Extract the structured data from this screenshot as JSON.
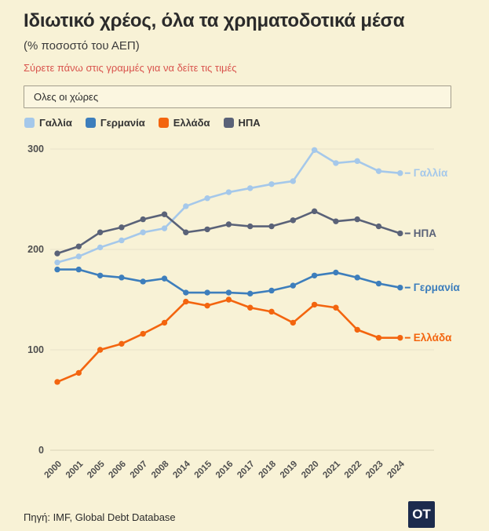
{
  "page": {
    "title": "Ιδιωτικό χρέος, όλα τα χρηματοδοτικά μέσα",
    "subtitle": "(% ποσοστό του ΑΕΠ)",
    "hint": "Σύρετε πάνω στις γραμμές για να δείτε τις τιμές",
    "background": "#f8f2d6",
    "hint_color": "#d9544d"
  },
  "filter": {
    "value": "Ολες οι χώρες"
  },
  "footer": {
    "source": "Πηγή: IMF, Global Debt Database",
    "logo_text": "OT",
    "logo_bg": "#1c2b4d"
  },
  "chart_data": {
    "type": "line",
    "title": "Ιδιωτικό χρέος, όλα τα χρηματοδοτικά μέσα",
    "subtitle": "(% ποσοστό του ΑΕΠ)",
    "xlabel": "",
    "ylabel": "",
    "ylim": [
      0,
      300
    ],
    "y_ticks": [
      0,
      100,
      200,
      300
    ],
    "grid": true,
    "legend_position": "top",
    "markers": true,
    "categories": [
      "2000",
      "2001",
      "2005",
      "2006",
      "2007",
      "2008",
      "2014",
      "2015",
      "2016",
      "2017",
      "2018",
      "2019",
      "2020",
      "2021",
      "2022",
      "2023",
      "2024"
    ],
    "series": [
      {
        "name": "Γαλλία",
        "color": "#a5c8ea",
        "values": [
          187,
          193,
          202,
          209,
          217,
          221,
          243,
          251,
          257,
          261,
          265,
          268,
          299,
          286,
          288,
          278,
          276
        ]
      },
      {
        "name": "Γερμανία",
        "color": "#3d7ebc",
        "values": [
          180,
          180,
          174,
          172,
          168,
          171,
          157,
          157,
          157,
          156,
          159,
          164,
          174,
          177,
          172,
          166,
          162
        ]
      },
      {
        "name": "Ελλάδα",
        "color": "#f3650f",
        "values": [
          68,
          77,
          100,
          106,
          116,
          127,
          148,
          144,
          150,
          142,
          138,
          127,
          145,
          142,
          120,
          112,
          112
        ]
      },
      {
        "name": "ΗΠΑ",
        "color": "#5a6278",
        "values": [
          196,
          203,
          217,
          222,
          230,
          235,
          217,
          220,
          225,
          223,
          223,
          229,
          238,
          228,
          230,
          223,
          216
        ]
      }
    ]
  }
}
